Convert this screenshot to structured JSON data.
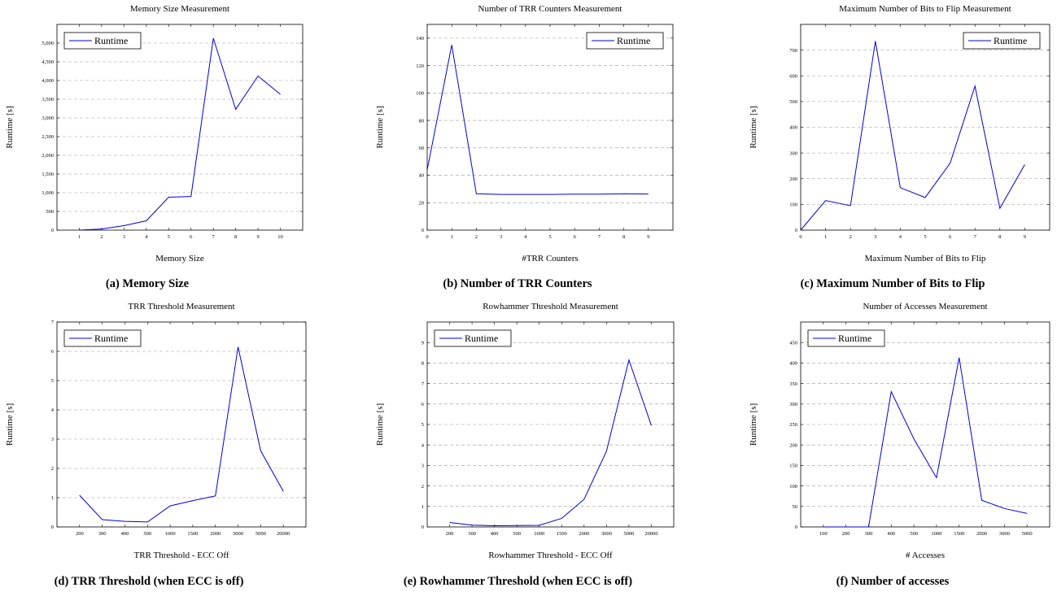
{
  "colors": {
    "line": "#0000dd",
    "grid": "#9a9a9a",
    "axis": "#000000"
  },
  "legend_label": "Runtime",
  "chart_data": [
    {
      "type": "line",
      "title": "Memory Size Measurement",
      "xlabel": "Memory Size",
      "ylabel": "Runtime [s]",
      "caption": "(a) Memory Size",
      "x_numeric": true,
      "xlim": [
        0,
        11
      ],
      "ylim": [
        0,
        5500
      ],
      "xticks": [
        1,
        2,
        3,
        4,
        5,
        6,
        7,
        8,
        9,
        10
      ],
      "yticks": [
        "0",
        "500",
        "1,000",
        "1,500",
        "2,000",
        "2,500",
        "3,000",
        "3,500",
        "4,000",
        "4,500",
        "5,000"
      ],
      "ytick_values": [
        0,
        500,
        1000,
        1500,
        2000,
        2500,
        3000,
        3500,
        4000,
        4500,
        5000
      ],
      "grid": true,
      "legend": "top-left",
      "x": [
        1,
        2,
        3,
        4,
        5,
        6,
        7,
        8,
        9,
        10
      ],
      "series": [
        {
          "name": "Runtime",
          "values": [
            0,
            30,
            120,
            250,
            880,
            900,
            5130,
            3230,
            4120,
            3630
          ]
        }
      ]
    },
    {
      "type": "line",
      "title": "Number of TRR Counters Measurement",
      "xlabel": "#TRR Counters",
      "ylabel": "Runtime [s]",
      "caption": "(b) Number of TRR Counters",
      "x_numeric": true,
      "xlim": [
        0,
        10
      ],
      "ylim": [
        0,
        150
      ],
      "xticks": [
        0,
        1,
        2,
        3,
        4,
        5,
        6,
        7,
        8,
        9
      ],
      "yticks": [
        "0",
        "20",
        "40",
        "60",
        "80",
        "100",
        "120",
        "140"
      ],
      "ytick_values": [
        0,
        20,
        40,
        60,
        80,
        100,
        120,
        140
      ],
      "grid": true,
      "legend": "top-right",
      "x": [
        0,
        1,
        2,
        3,
        4,
        5,
        6,
        7,
        8,
        9
      ],
      "series": [
        {
          "name": "Runtime",
          "values": [
            44,
            135,
            26.5,
            26,
            26,
            26,
            26.2,
            26.2,
            26.5,
            26.3
          ]
        }
      ]
    },
    {
      "type": "line",
      "title": "Maximum Number of Bits to Flip Measurement",
      "xlabel": "Maximum Number of Bits to Flip",
      "ylabel": "Runtime [s]",
      "caption": "(c) Maximum Number of Bits to Flip",
      "x_numeric": true,
      "xlim": [
        0,
        10
      ],
      "ylim": [
        0,
        800
      ],
      "xticks": [
        0,
        1,
        2,
        3,
        4,
        5,
        6,
        7,
        8,
        9
      ],
      "yticks": [
        "0",
        "100",
        "200",
        "300",
        "400",
        "500",
        "600",
        "700"
      ],
      "ytick_values": [
        0,
        100,
        200,
        300,
        400,
        500,
        600,
        700
      ],
      "grid": true,
      "legend": "top-right",
      "x": [
        0,
        1,
        2,
        3,
        4,
        5,
        6,
        7,
        8,
        9
      ],
      "series": [
        {
          "name": "Runtime",
          "values": [
            0,
            115,
            95,
            735,
            165,
            127,
            260,
            560,
            85,
            255
          ]
        }
      ]
    },
    {
      "type": "line",
      "title": "TRR Threshold Measurement",
      "xlabel": "TRR Threshold - ECC Off",
      "ylabel": "Runtime [s]",
      "caption": "(d) TRR Threshold (when ECC is off)",
      "x_numeric": false,
      "ylim": [
        0,
        7
      ],
      "categories": [
        "200",
        "300",
        "400",
        "500",
        "1000",
        "1500",
        "2000",
        "3000",
        "5000",
        "20000"
      ],
      "yticks": [
        "0",
        "1",
        "2",
        "3",
        "4",
        "5",
        "6",
        "7"
      ],
      "ytick_values": [
        0,
        1,
        2,
        3,
        4,
        5,
        6,
        7
      ],
      "grid": true,
      "legend": "top-left",
      "series": [
        {
          "name": "Runtime",
          "values": [
            1.08,
            0.25,
            0.19,
            0.17,
            0.72,
            0.9,
            1.06,
            6.15,
            2.6,
            1.22
          ]
        }
      ]
    },
    {
      "type": "line",
      "title": "Rowhammer Threshold Measurement",
      "xlabel": "Rowhammer Threshold - ECC Off",
      "ylabel": "Runtime [s]",
      "caption": "(e) Rowhammer Threshold (when ECC is off)",
      "x_numeric": false,
      "ylim": [
        0,
        10
      ],
      "categories": [
        "200",
        "300",
        "400",
        "500",
        "1000",
        "1500",
        "2000",
        "3000",
        "5000",
        "20000"
      ],
      "yticks": [
        "0",
        "1",
        "2",
        "3",
        "4",
        "5",
        "6",
        "7",
        "8",
        "9"
      ],
      "ytick_values": [
        0,
        1,
        2,
        3,
        4,
        5,
        6,
        7,
        8,
        9
      ],
      "grid": true,
      "legend": "top-left",
      "series": [
        {
          "name": "Runtime",
          "values": [
            0.22,
            0.09,
            0.06,
            0.07,
            0.08,
            0.42,
            1.35,
            3.7,
            8.15,
            4.95
          ]
        }
      ]
    },
    {
      "type": "line",
      "title": "Number of Accesses Measurement",
      "xlabel": "# Accesses",
      "ylabel": "Runtime [s]",
      "caption": "(f) Number of accesses",
      "x_numeric": false,
      "ylim": [
        0,
        500
      ],
      "categories": [
        "100",
        "200",
        "300",
        "400",
        "500",
        "1000",
        "1500",
        "2000",
        "3000",
        "5000"
      ],
      "yticks": [
        "0",
        "50",
        "100",
        "150",
        "200",
        "250",
        "300",
        "350",
        "400",
        "450"
      ],
      "ytick_values": [
        0,
        50,
        100,
        150,
        200,
        250,
        300,
        350,
        400,
        450
      ],
      "grid": true,
      "legend": "top-left",
      "series": [
        {
          "name": "Runtime",
          "values": [
            0,
            0,
            0,
            330,
            215,
            120,
            413,
            65,
            45,
            33
          ]
        }
      ]
    }
  ]
}
